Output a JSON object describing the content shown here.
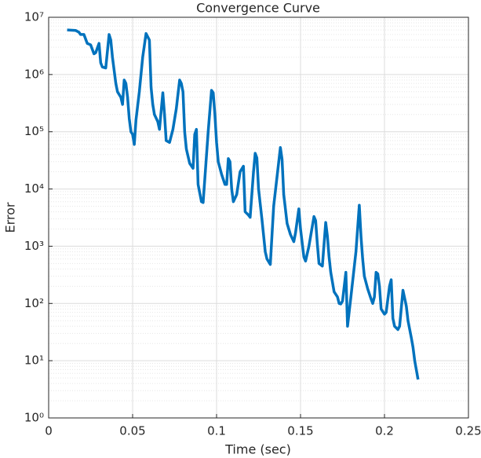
{
  "chart_data": {
    "type": "line",
    "title": "Convergence Curve",
    "x_label": "Time (sec)",
    "y_label": "Error",
    "x": [
      0.011,
      0.016,
      0.018,
      0.019,
      0.021,
      0.023,
      0.025,
      0.027,
      0.028,
      0.03,
      0.031,
      0.032,
      0.034,
      0.036,
      0.037,
      0.038,
      0.04,
      0.041,
      0.043,
      0.044,
      0.045,
      0.046,
      0.047,
      0.048,
      0.049,
      0.05,
      0.051,
      0.052,
      0.054,
      0.056,
      0.058,
      0.06,
      0.061,
      0.062,
      0.063,
      0.065,
      0.066,
      0.068,
      0.069,
      0.07,
      0.072,
      0.074,
      0.076,
      0.078,
      0.079,
      0.08,
      0.081,
      0.082,
      0.084,
      0.086,
      0.087,
      0.088,
      0.089,
      0.091,
      0.092,
      0.093,
      0.095,
      0.097,
      0.098,
      0.099,
      0.1,
      0.101,
      0.103,
      0.105,
      0.106,
      0.107,
      0.108,
      0.109,
      0.11,
      0.112,
      0.114,
      0.116,
      0.117,
      0.119,
      0.12,
      0.122,
      0.123,
      0.124,
      0.125,
      0.127,
      0.129,
      0.13,
      0.132,
      0.134,
      0.138,
      0.139,
      0.14,
      0.142,
      0.144,
      0.146,
      0.147,
      0.149,
      0.15,
      0.152,
      0.153,
      0.155,
      0.158,
      0.159,
      0.16,
      0.161,
      0.163,
      0.165,
      0.166,
      0.167,
      0.168,
      0.17,
      0.172,
      0.173,
      0.174,
      0.175,
      0.177,
      0.178,
      0.18,
      0.183,
      0.185,
      0.186,
      0.187,
      0.188,
      0.19,
      0.192,
      0.193,
      0.194,
      0.195,
      0.196,
      0.197,
      0.198,
      0.2,
      0.201,
      0.203,
      0.204,
      0.205,
      0.206,
      0.208,
      0.209,
      0.211,
      0.213,
      0.214,
      0.216,
      0.217,
      0.218,
      0.22
    ],
    "series": [
      {
        "name": "Error",
        "color": "#0072bd",
        "values": [
          6000000,
          5900000,
          5500000,
          5000000,
          5000000,
          3500000,
          3300000,
          2300000,
          2400000,
          3500000,
          1600000,
          1350000,
          1300000,
          5000000,
          4000000,
          2000000,
          700000,
          500000,
          400000,
          300000,
          800000,
          700000,
          400000,
          170000,
          100000,
          90000,
          60000,
          160000,
          500000,
          2000000,
          5200000,
          4000000,
          600000,
          300000,
          200000,
          150000,
          110000,
          480000,
          200000,
          70000,
          65000,
          110000,
          250000,
          800000,
          700000,
          500000,
          100000,
          50000,
          28000,
          23000,
          90000,
          110000,
          12000,
          6000,
          5800,
          15000,
          100000,
          530000,
          480000,
          200000,
          65000,
          30000,
          18000,
          12000,
          12000,
          34000,
          30000,
          10000,
          6000,
          8000,
          20000,
          25000,
          4000,
          3500,
          3200,
          20000,
          42000,
          35000,
          10000,
          3000,
          800,
          600,
          480,
          5000,
          53000,
          33000,
          8000,
          2500,
          1600,
          1200,
          1700,
          4500,
          2000,
          650,
          550,
          1000,
          3300,
          2800,
          1100,
          500,
          450,
          2600,
          1500,
          650,
          350,
          160,
          130,
          100,
          98,
          110,
          350,
          40,
          130,
          800,
          5200,
          1500,
          600,
          300,
          180,
          120,
          100,
          130,
          350,
          330,
          200,
          80,
          65,
          70,
          200,
          260,
          55,
          40,
          35,
          40,
          170,
          90,
          50,
          25,
          17,
          10,
          4.7
        ]
      }
    ],
    "xlim": [
      0,
      0.25
    ],
    "xticks": [
      0,
      0.05,
      0.1,
      0.15,
      0.2,
      0.25
    ],
    "ylim": [
      1,
      10000000
    ],
    "y_scale": "log",
    "yticks": [
      {
        "value": 1,
        "label": "10⁰"
      },
      {
        "value": 10,
        "label": "10¹"
      },
      {
        "value": 100,
        "label": "10²"
      },
      {
        "value": 1000,
        "label": "10³"
      },
      {
        "value": 10000,
        "label": "10⁴"
      },
      {
        "value": 100000,
        "label": "10⁵"
      },
      {
        "value": 1000000,
        "label": "10⁶"
      },
      {
        "value": 10000000,
        "label": "10⁷"
      }
    ],
    "grid": true,
    "minor_grid": true
  }
}
